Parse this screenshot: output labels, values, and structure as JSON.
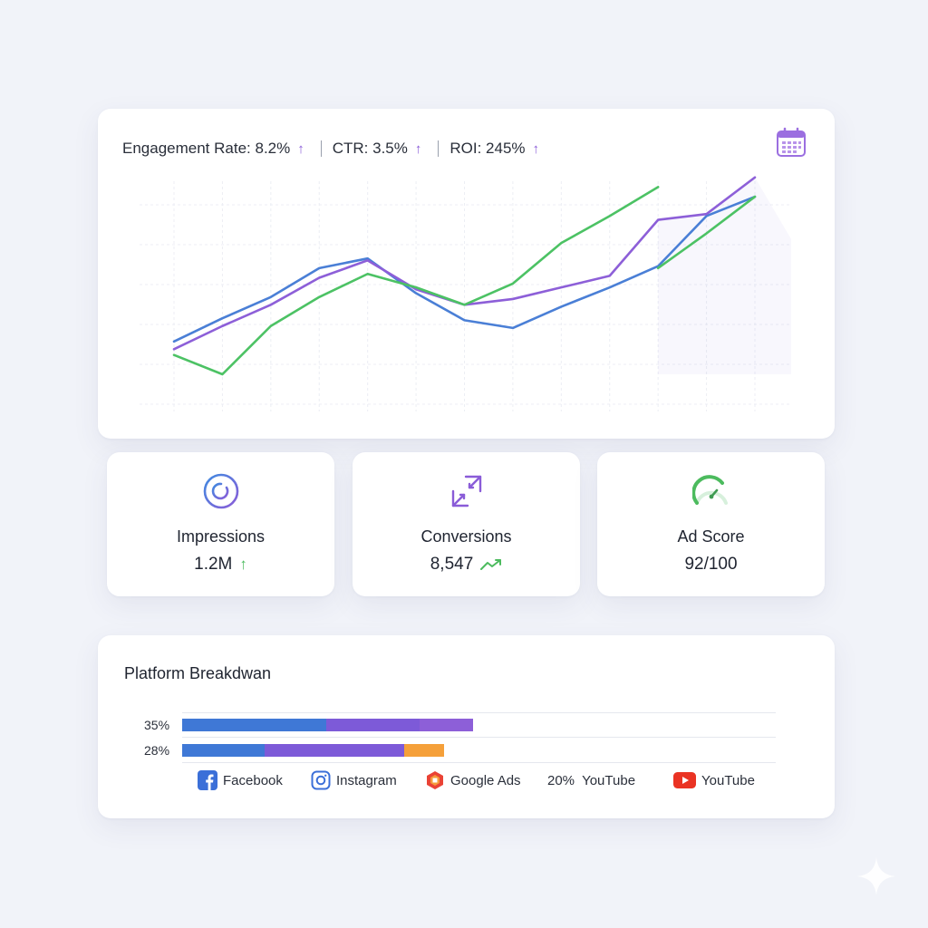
{
  "header_metrics": [
    {
      "label": "Engagement Rate: 8.2%",
      "trend_icon": "arrow-up-icon"
    },
    {
      "label": "CTR: 3.5%",
      "trend_icon": "arrow-up-icon"
    },
    {
      "label": "ROI: 245%",
      "trend_icon": "arrow-up-icon"
    }
  ],
  "header_icon": "calendar-icon",
  "chart_data": {
    "type": "line",
    "x": [
      1,
      2,
      3,
      4,
      5,
      6,
      7,
      8,
      9,
      10,
      11,
      12,
      13
    ],
    "ylim": [
      0,
      100
    ],
    "grid": true,
    "legend": "none",
    "series": [
      {
        "color": "#4a7fd6",
        "values": [
          17,
          29,
          40,
          55,
          60,
          42,
          28,
          24,
          35,
          45,
          56,
          82,
          92
        ]
      },
      {
        "color": "#8d5fd8",
        "values": [
          13,
          25,
          36,
          50,
          59,
          44,
          36,
          39,
          45,
          51,
          80,
          83,
          102
        ]
      },
      {
        "color": "#4cc264",
        "values": [
          10,
          0,
          25,
          40,
          52,
          45,
          36,
          47,
          68,
          82,
          97,
          null,
          null
        ]
      },
      {
        "color": "#4cc264",
        "values": [
          null,
          null,
          null,
          null,
          null,
          null,
          null,
          null,
          null,
          null,
          55,
          73,
          92
        ]
      }
    ]
  },
  "stats": [
    {
      "label": "Impressions",
      "value": "1.2M",
      "icon": "target-icon",
      "trend_icon": "arrow-up-icon"
    },
    {
      "label": "Conversions",
      "value": "8,547",
      "icon": "conversion-arrows-icon",
      "trend_icon": "trend-line-icon"
    },
    {
      "label": "Ad Score",
      "value": "92/100",
      "icon": "gauge-icon"
    }
  ],
  "platform": {
    "title": "Platform Breakdwan",
    "bars": [
      {
        "label": "35%"
      },
      {
        "label": "28%"
      }
    ],
    "legend": [
      {
        "label": "Facebook",
        "icon": "facebook-icon",
        "color": "#3b6fd8"
      },
      {
        "label": "Instagram",
        "icon": "instagram-icon",
        "color": "#3b6fd8"
      },
      {
        "label": "Google Ads",
        "icon": "google-ads-icon",
        "color": "#ea4335"
      },
      {
        "label": "20%  YouTube"
      },
      {
        "label": "YouTube",
        "icon": "youtube-icon",
        "color": "#ea3323"
      }
    ]
  },
  "colors": {
    "blue": "#4a7fd6",
    "purple": "#8d5fd8",
    "green": "#4cc264",
    "orange": "#f5a03a"
  }
}
